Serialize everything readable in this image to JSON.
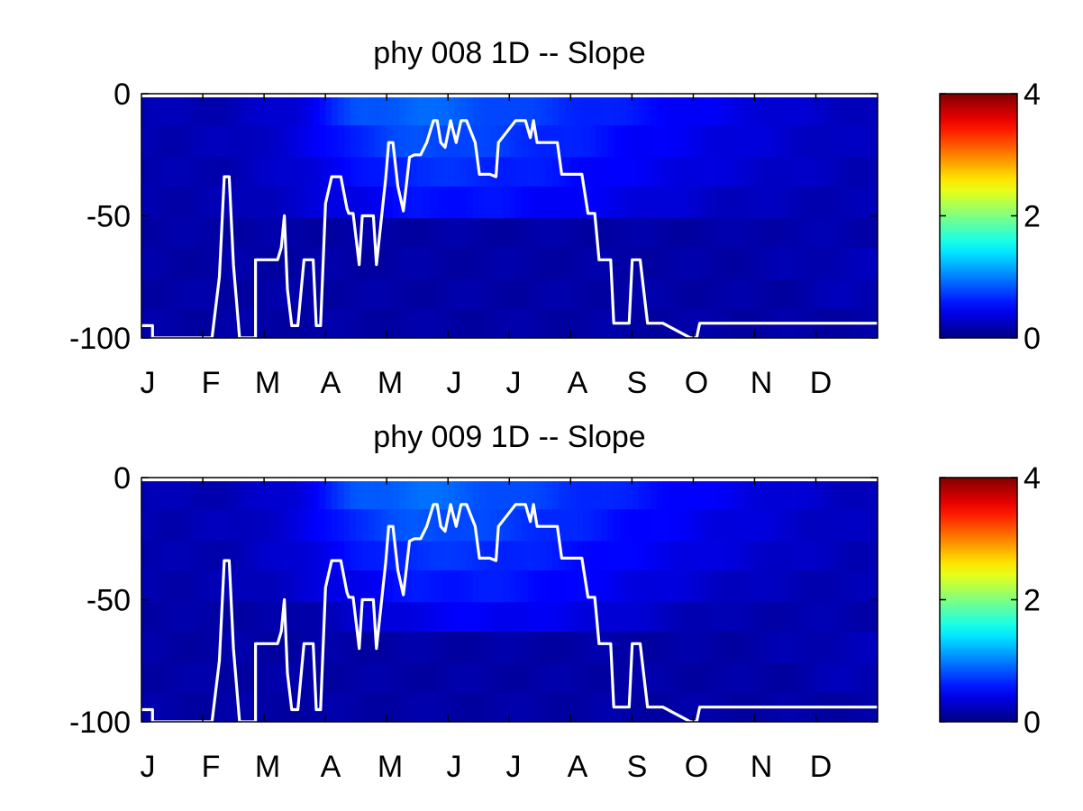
{
  "chart_data": [
    {
      "type": "heatmap",
      "title": "phy  008 1D   -- Slope",
      "xlabel": "",
      "ylabel": "",
      "x_tick_labels": [
        "J",
        "F",
        "M",
        "A",
        "M",
        "J",
        "J",
        "A",
        "S",
        "O",
        "N",
        "D"
      ],
      "y_ticks": [
        0,
        -50,
        -100
      ],
      "ylim": [
        -100,
        0
      ],
      "colorbar": {
        "ticks": [
          0,
          2,
          4
        ],
        "range": [
          0,
          4
        ],
        "colormap": "jet"
      },
      "line_color": "#ffffff",
      "depth_bands": [
        {
          "top": -1.5,
          "bottom": -13
        },
        {
          "top": -13,
          "bottom": -26
        },
        {
          "top": -26,
          "bottom": -38
        },
        {
          "top": -38,
          "bottom": -51
        },
        {
          "top": -51,
          "bottom": -63
        },
        {
          "top": -63,
          "bottom": -76
        },
        {
          "top": -76,
          "bottom": -88
        },
        {
          "top": -88,
          "bottom": -100
        }
      ],
      "heat_month_values": [
        [
          0.2,
          0.22,
          0.35,
          0.8,
          0.92,
          0.82,
          0.72,
          0.62,
          0.52,
          0.42,
          0.32,
          0.25
        ],
        [
          0.2,
          0.22,
          0.35,
          0.65,
          0.82,
          0.75,
          0.66,
          0.56,
          0.46,
          0.38,
          0.3,
          0.24
        ],
        [
          0.18,
          0.2,
          0.32,
          0.52,
          0.68,
          0.66,
          0.58,
          0.5,
          0.42,
          0.34,
          0.28,
          0.22
        ],
        [
          0.18,
          0.2,
          0.3,
          0.42,
          0.55,
          0.56,
          0.5,
          0.44,
          0.34,
          0.26,
          0.22,
          0.2
        ],
        [
          0.15,
          0.15,
          0.15,
          0.15,
          0.15,
          0.15,
          0.15,
          0.15,
          0.15,
          0.15,
          0.18,
          0.18
        ],
        [
          0.15,
          0.15,
          0.15,
          0.15,
          0.15,
          0.15,
          0.15,
          0.15,
          0.15,
          0.15,
          0.18,
          0.22
        ],
        [
          0.15,
          0.15,
          0.15,
          0.15,
          0.15,
          0.15,
          0.15,
          0.15,
          0.15,
          0.15,
          0.15,
          0.22
        ],
        [
          0.15,
          0.15,
          0.15,
          0.15,
          0.15,
          0.15,
          0.15,
          0.15,
          0.15,
          0.15,
          0.15,
          0.15
        ]
      ],
      "line_series": {
        "x_months": [
          0,
          0.18,
          0.18,
          1.15,
          1.27,
          1.35,
          1.43,
          1.5,
          1.6,
          1.6,
          1.86,
          1.86,
          2.17,
          2.22,
          2.28,
          2.33,
          2.38,
          2.45,
          2.55,
          2.65,
          2.75,
          2.8,
          2.85,
          2.92,
          3.0,
          3.1,
          3.16,
          3.25,
          3.35,
          3.38,
          3.45,
          3.55,
          3.6,
          3.65,
          3.78,
          3.83,
          3.98,
          4.03,
          4.1,
          4.18,
          4.27,
          4.37,
          4.45,
          4.55,
          4.65,
          4.76,
          4.82,
          4.88,
          4.95,
          5.04,
          5.13,
          5.21,
          5.3,
          5.44,
          5.51,
          5.68,
          5.78,
          5.82,
          6.1,
          6.15,
          6.2,
          6.26,
          6.34,
          6.39,
          6.45,
          6.5,
          6.55,
          6.6,
          6.64,
          6.68,
          6.78,
          6.85,
          7.18,
          7.28,
          7.35,
          7.39,
          7.46,
          7.65,
          7.7,
          7.95,
          8.0,
          8.08,
          8.13,
          8.25,
          8.3,
          8.4,
          8.5,
          8.95,
          9.05,
          9.1,
          9.2,
          9.3,
          9.4,
          9.5,
          9.6,
          9.75,
          9.9,
          10.0,
          10.08,
          10.18,
          10.4,
          10.46,
          11.3,
          11.4,
          11.45,
          11.55,
          11.75,
          12.0
        ],
        "y_depth": [
          -95,
          -95,
          -100,
          -100,
          -75,
          -34,
          -34,
          -70,
          -100,
          -100,
          -100,
          -68,
          -68,
          -68,
          -63,
          -50,
          -80,
          -95,
          -95,
          -68,
          -68,
          -68,
          -95,
          -95,
          -45,
          -34,
          -34,
          -34,
          -47,
          -49,
          -49,
          -70,
          -50,
          -50,
          -50,
          -70,
          -35,
          -20,
          -20,
          -38,
          -48,
          -26,
          -25,
          -25,
          -20,
          -11,
          -11,
          -20,
          -22,
          -11,
          -20,
          -11,
          -11,
          -20,
          -33,
          -33,
          -34,
          -20,
          -11,
          -11,
          -11,
          -11,
          -18,
          -11,
          -20,
          -20,
          -20,
          -20,
          -20,
          -20,
          -20,
          -33,
          -33,
          -49,
          -49,
          -49,
          -68,
          -68,
          -94,
          -94,
          -68,
          -68,
          -68,
          -94,
          -94,
          -94,
          -94,
          -100,
          -100,
          -94,
          -94,
          -94,
          -94,
          -94,
          -94,
          -94,
          -94,
          -94,
          -94,
          -94,
          -94,
          -94,
          -94,
          -94,
          -94,
          -94,
          -94,
          -94
        ]
      }
    },
    {
      "type": "heatmap",
      "title": "phy  009 1D   -- Slope",
      "xlabel": "",
      "ylabel": "",
      "x_tick_labels": [
        "J",
        "F",
        "M",
        "A",
        "M",
        "J",
        "J",
        "A",
        "S",
        "O",
        "N",
        "D"
      ],
      "y_ticks": [
        0,
        -50,
        -100
      ],
      "ylim": [
        -100,
        0
      ],
      "colorbar": {
        "ticks": [
          0,
          2,
          4
        ],
        "range": [
          0,
          4
        ],
        "colormap": "jet"
      },
      "line_color": "#ffffff",
      "depth_bands": [
        {
          "top": -1.5,
          "bottom": -13
        },
        {
          "top": -13,
          "bottom": -26
        },
        {
          "top": -26,
          "bottom": -38
        },
        {
          "top": -38,
          "bottom": -51
        },
        {
          "top": -51,
          "bottom": -63
        },
        {
          "top": -63,
          "bottom": -76
        },
        {
          "top": -76,
          "bottom": -88
        },
        {
          "top": -88,
          "bottom": -100
        }
      ],
      "heat_month_values": [
        [
          0.2,
          0.22,
          0.35,
          0.82,
          0.94,
          0.84,
          0.74,
          0.64,
          0.54,
          0.44,
          0.33,
          0.25
        ],
        [
          0.2,
          0.22,
          0.35,
          0.68,
          0.84,
          0.77,
          0.68,
          0.58,
          0.48,
          0.39,
          0.31,
          0.24
        ],
        [
          0.18,
          0.2,
          0.33,
          0.55,
          0.7,
          0.68,
          0.6,
          0.52,
          0.44,
          0.35,
          0.28,
          0.22
        ],
        [
          0.18,
          0.2,
          0.3,
          0.44,
          0.58,
          0.6,
          0.54,
          0.46,
          0.36,
          0.27,
          0.22,
          0.2
        ],
        [
          0.15,
          0.15,
          0.15,
          0.3,
          0.42,
          0.48,
          0.44,
          0.36,
          0.26,
          0.18,
          0.18,
          0.18
        ],
        [
          0.15,
          0.15,
          0.15,
          0.15,
          0.15,
          0.15,
          0.15,
          0.15,
          0.15,
          0.15,
          0.18,
          0.22
        ],
        [
          0.15,
          0.15,
          0.15,
          0.15,
          0.15,
          0.15,
          0.15,
          0.15,
          0.15,
          0.15,
          0.15,
          0.22
        ],
        [
          0.15,
          0.15,
          0.15,
          0.15,
          0.15,
          0.15,
          0.15,
          0.15,
          0.15,
          0.15,
          0.15,
          0.15
        ]
      ],
      "line_series": {
        "x_months": [
          0,
          0.18,
          0.18,
          1.15,
          1.27,
          1.35,
          1.43,
          1.5,
          1.6,
          1.6,
          1.86,
          1.86,
          2.17,
          2.22,
          2.28,
          2.33,
          2.38,
          2.45,
          2.55,
          2.65,
          2.75,
          2.8,
          2.85,
          2.92,
          3.0,
          3.1,
          3.16,
          3.25,
          3.35,
          3.38,
          3.45,
          3.55,
          3.6,
          3.65,
          3.78,
          3.83,
          3.98,
          4.03,
          4.1,
          4.18,
          4.27,
          4.37,
          4.45,
          4.55,
          4.65,
          4.76,
          4.82,
          4.88,
          4.95,
          5.04,
          5.13,
          5.21,
          5.3,
          5.44,
          5.51,
          5.68,
          5.78,
          5.82,
          6.1,
          6.15,
          6.2,
          6.26,
          6.34,
          6.39,
          6.45,
          6.5,
          6.55,
          6.6,
          6.64,
          6.68,
          6.78,
          6.85,
          7.18,
          7.28,
          7.35,
          7.39,
          7.46,
          7.65,
          7.7,
          7.95,
          8.0,
          8.08,
          8.13,
          8.25,
          8.3,
          8.4,
          8.5,
          8.95,
          9.05,
          9.1,
          9.2,
          9.3,
          9.4,
          9.5,
          9.6,
          9.75,
          9.9,
          10.0,
          10.08,
          10.18,
          10.4,
          10.46,
          11.3,
          11.4,
          11.45,
          11.55,
          11.75,
          12.0
        ],
        "y_depth": [
          -95,
          -95,
          -100,
          -100,
          -75,
          -34,
          -34,
          -70,
          -100,
          -100,
          -100,
          -68,
          -68,
          -68,
          -63,
          -50,
          -80,
          -95,
          -95,
          -68,
          -68,
          -68,
          -95,
          -95,
          -45,
          -34,
          -34,
          -34,
          -47,
          -49,
          -49,
          -70,
          -50,
          -50,
          -50,
          -70,
          -35,
          -20,
          -20,
          -38,
          -48,
          -26,
          -25,
          -25,
          -20,
          -11,
          -11,
          -20,
          -22,
          -11,
          -20,
          -11,
          -11,
          -20,
          -33,
          -33,
          -34,
          -20,
          -11,
          -11,
          -11,
          -11,
          -18,
          -11,
          -20,
          -20,
          -20,
          -20,
          -20,
          -20,
          -20,
          -33,
          -33,
          -49,
          -49,
          -49,
          -68,
          -68,
          -94,
          -94,
          -68,
          -68,
          -68,
          -94,
          -94,
          -94,
          -94,
          -100,
          -100,
          -94,
          -94,
          -94,
          -94,
          -94,
          -94,
          -94,
          -94,
          -94,
          -94,
          -94,
          -94,
          -94,
          -94,
          -94,
          -94,
          -94,
          -94,
          -94
        ]
      }
    }
  ]
}
